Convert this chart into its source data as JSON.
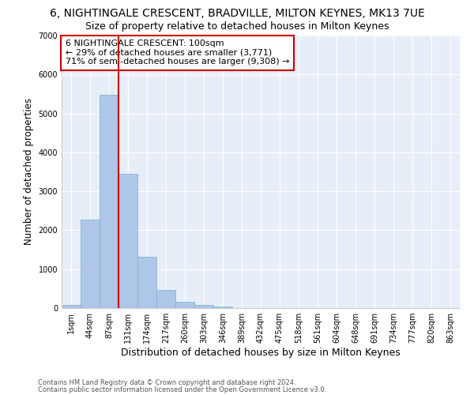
{
  "title": "6, NIGHTINGALE CRESCENT, BRADVILLE, MILTON KEYNES, MK13 7UE",
  "subtitle": "Size of property relative to detached houses in Milton Keynes",
  "xlabel": "Distribution of detached houses by size in Milton Keynes",
  "ylabel": "Number of detached properties",
  "footnote1": "Contains HM Land Registry data © Crown copyright and database right 2024.",
  "footnote2": "Contains public sector information licensed under the Open Government Licence v3.0.",
  "bar_labels": [
    "1sqm",
    "44sqm",
    "87sqm",
    "131sqm",
    "174sqm",
    "217sqm",
    "260sqm",
    "303sqm",
    "346sqm",
    "389sqm",
    "432sqm",
    "475sqm",
    "518sqm",
    "561sqm",
    "604sqm",
    "648sqm",
    "691sqm",
    "734sqm",
    "777sqm",
    "820sqm",
    "863sqm"
  ],
  "bar_values": [
    80,
    2280,
    5480,
    3440,
    1310,
    460,
    155,
    85,
    45,
    0,
    0,
    0,
    0,
    0,
    0,
    0,
    0,
    0,
    0,
    0,
    0
  ],
  "bar_color": "#aec6e8",
  "bar_edgecolor": "#7aafd4",
  "vline_x_index": 2,
  "vline_color": "#cc0000",
  "annotation_line1": "6 NIGHTINGALE CRESCENT: 100sqm",
  "annotation_line2": "← 29% of detached houses are smaller (3,771)",
  "annotation_line3": "71% of semi-detached houses are larger (9,308) →",
  "annotation_box_color": "white",
  "annotation_box_edgecolor": "#cc0000",
  "ylim": [
    0,
    7000
  ],
  "yticks": [
    0,
    1000,
    2000,
    3000,
    4000,
    5000,
    6000,
    7000
  ],
  "bg_color": "#e8eef8",
  "grid_color": "#ffffff",
  "title_fontsize": 10,
  "subtitle_fontsize": 9,
  "ylabel_fontsize": 8.5,
  "xlabel_fontsize": 9,
  "tick_fontsize": 7,
  "annotation_fontsize": 8,
  "footnote_fontsize": 6
}
